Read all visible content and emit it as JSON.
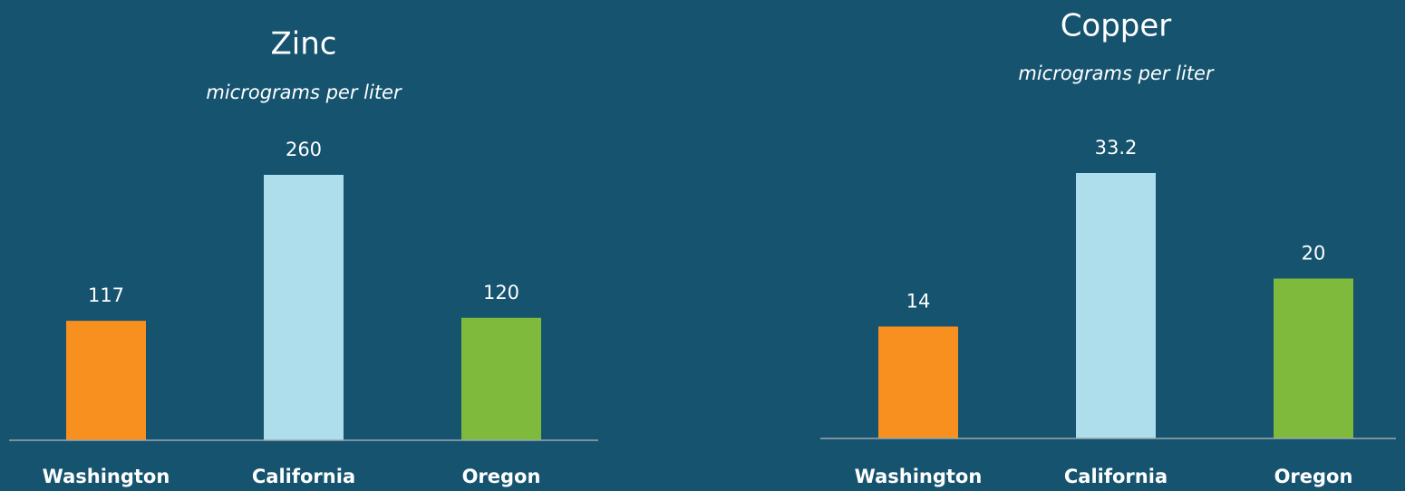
{
  "chart_data": [
    {
      "type": "bar",
      "title": "Zinc",
      "subtitle": "micrograms per liter",
      "categories": [
        "Washington",
        "California",
        "Oregon"
      ],
      "values": [
        117,
        260,
        120
      ],
      "colors": [
        "#f7901e",
        "#aedeec",
        "#7fba3c"
      ]
    },
    {
      "type": "bar",
      "title": "Copper",
      "subtitle": "micrograms per liter",
      "categories": [
        "Washington",
        "California",
        "Oregon"
      ],
      "values": [
        14,
        33.2,
        20
      ],
      "colors": [
        "#f7901e",
        "#aedeec",
        "#7fba3c"
      ]
    }
  ]
}
